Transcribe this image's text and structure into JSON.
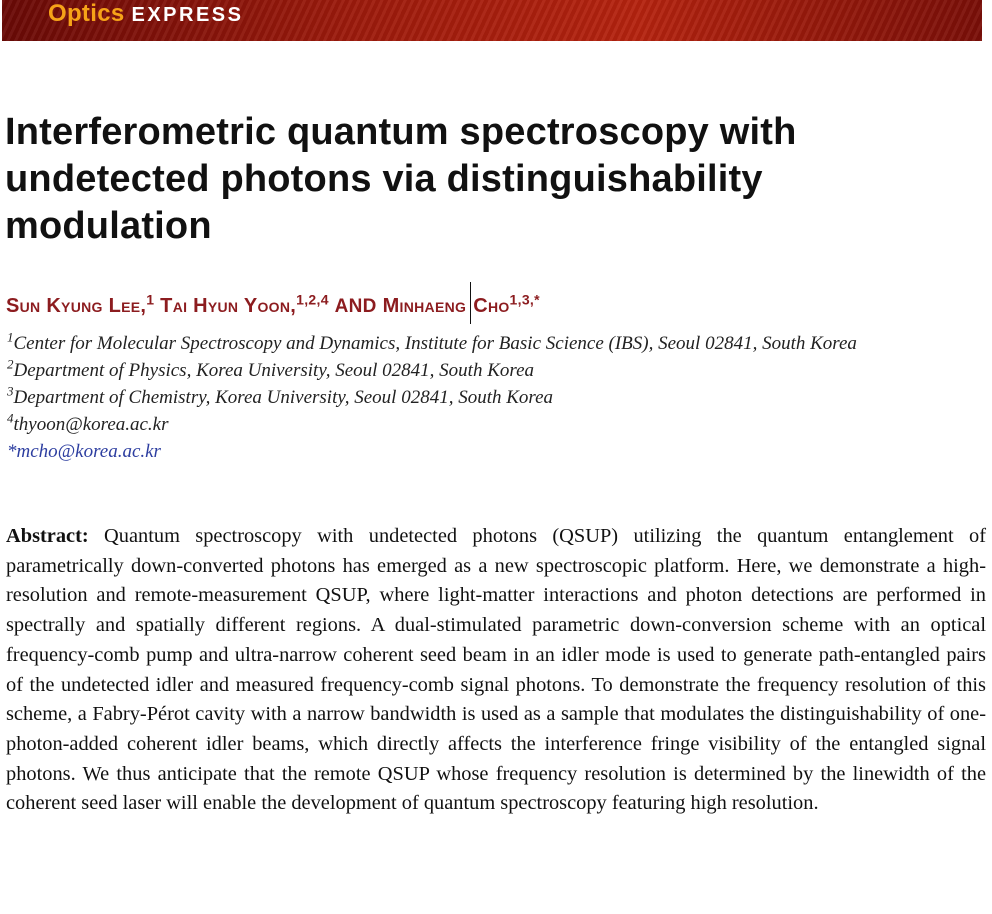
{
  "banner": {
    "journal_part1": "Optics",
    "journal_part2": "EXPRESS"
  },
  "title": "Interferometric quantum spectroscopy with undetected photons via distinguishability modulation",
  "authors": [
    {
      "name": "Sun Kyung Lee,",
      "sup": "1"
    },
    {
      "name": "Tai Hyun Yoon,",
      "sup": "1,2,4"
    },
    {
      "conj": "and"
    },
    {
      "name": "Minhaeng",
      "name2": "Cho",
      "sup": "1,3,*"
    }
  ],
  "affiliations": [
    {
      "sup": "1",
      "text": "Center for Molecular Spectroscopy and Dynamics, Institute for Basic Science (IBS), Seoul 02841, South Korea"
    },
    {
      "sup": "2",
      "text": "Department of Physics, Korea University, Seoul 02841, South Korea"
    },
    {
      "sup": "3",
      "text": "Department of Chemistry, Korea University, Seoul 02841, South Korea"
    },
    {
      "sup": "4",
      "text": "thyoon@korea.ac.kr"
    },
    {
      "sup": "",
      "text": "*mcho@korea.ac.kr"
    }
  ],
  "abstract": {
    "label": "Abstract:",
    "text": "Quantum spectroscopy with undetected photons (QSUP) utilizing the quantum entanglement of parametrically down-converted photons has emerged as a new spectroscopic platform. Here, we demonstrate a high-resolution and remote-measurement QSUP, where light-matter interactions and photon detections are performed in spectrally and spatially different regions. A dual-stimulated parametric down-conversion scheme with an optical frequency-comb pump and ultra-narrow coherent seed beam in an idler mode is used to generate path-entangled pairs of the undetected idler and measured frequency-comb signal photons. To demonstrate the frequency resolution of this scheme, a Fabry-Pérot cavity with a narrow bandwidth is used as a sample that modulates the distinguishability of one-photon-added coherent idler beams, which directly affects the interference fringe visibility of the entangled signal photons. We thus anticipate that the remote QSUP whose frequency resolution is determined by the linewidth of the coherent seed laser will enable the development of quantum spectroscopy featuring high resolution."
  },
  "colors": {
    "banner": "#9c1a0c",
    "logo_optics": "#f6a318",
    "authors": "#8c1c1f",
    "email_link": "#2d3ea0"
  }
}
